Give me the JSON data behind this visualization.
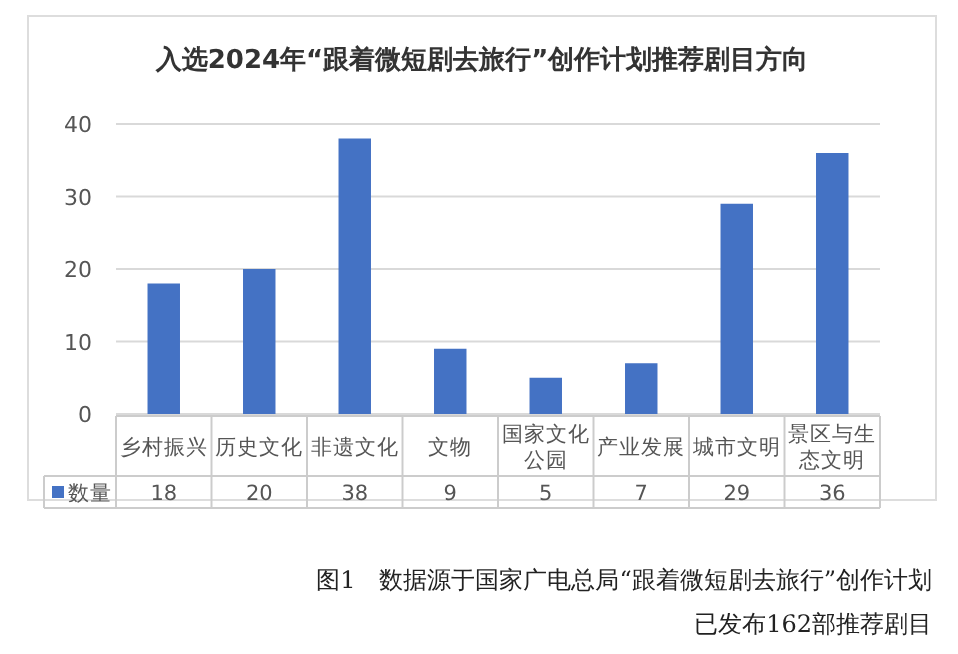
{
  "chart_data": {
    "type": "bar",
    "title": "入选2024年“跟着微短剧去旅行”创作计划推荐剧目方向",
    "categories": [
      "乡村振兴",
      "历史文化",
      "非遗文化",
      "文物",
      "国家文化公园",
      "产业发展",
      "城市文明",
      "景区与生态文明"
    ],
    "series": [
      {
        "name": "数量",
        "color": "#4472c4",
        "values": [
          18,
          20,
          38,
          9,
          5,
          7,
          29,
          36
        ]
      }
    ],
    "ylim": [
      0,
      40
    ],
    "yticks": [
      0,
      10,
      20,
      30,
      40
    ],
    "grid": "y",
    "legend": "bottom",
    "data_labels": true,
    "annotations": [
      "图1　数据源于国家广电总局“跟着微短剧去旅行”创作计划",
      "已发布162部推荐剧目"
    ]
  }
}
